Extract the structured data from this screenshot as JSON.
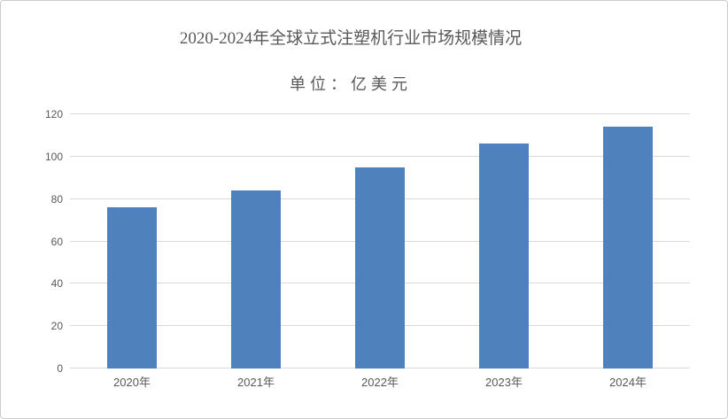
{
  "window": {
    "background": "#ffffff",
    "border_color": "#cccccc"
  },
  "header": {
    "title": "2020-2024年全球立式注塑机行业市场规模情况",
    "subtitle": "单位：亿美元"
  },
  "colors": {
    "bar": "#4f82bd",
    "gridline": "#d9d9d9",
    "text": "#595959"
  },
  "chart_data": {
    "type": "bar",
    "title": "2020-2024年全球立式注塑机行业市场规模情况",
    "subtitle": "单位：亿美元",
    "categories": [
      "2020年",
      "2021年",
      "2022年",
      "2023年",
      "2024年"
    ],
    "values": [
      76,
      84,
      95,
      106,
      114
    ],
    "xlabel": "",
    "ylabel": "",
    "ylim": [
      0,
      120
    ],
    "ytick_step": 20,
    "yticks": [
      0,
      20,
      40,
      60,
      80,
      100,
      120
    ],
    "grid": true,
    "legend": false
  }
}
